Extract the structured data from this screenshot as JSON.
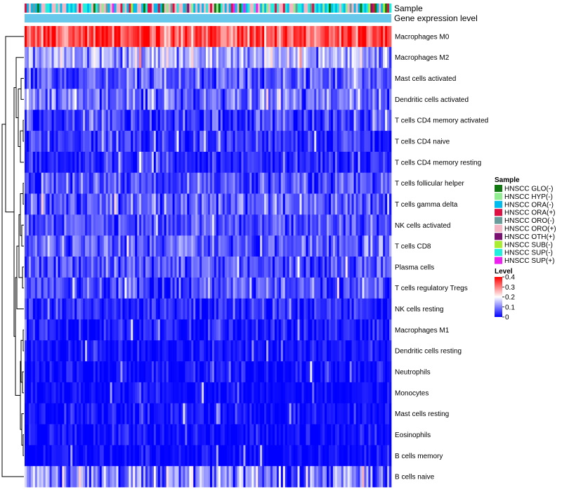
{
  "chart_data": {
    "type": "heatmap",
    "annotation_labels": {
      "sample": "Sample",
      "expression": "Gene expression level"
    },
    "rows": [
      "Macrophages M0",
      "Macrophages M2",
      "Mast cells activated",
      "Dendritic cells activated",
      "T cells CD4 memory activated",
      "T cells CD4 naive",
      "T cells CD4 memory resting",
      "T cells follicular helper",
      "T cells gamma delta",
      "NK cells activated",
      "T cells CD8",
      "Plasma cells",
      "T cells regulatory  Tregs",
      "NK cells resting",
      "Macrophages M1",
      "Dendritic cells resting",
      "Neutrophils",
      "Monocytes",
      "Mast cells resting",
      "Eosinophils",
      "B cells memory",
      "B cells naive"
    ],
    "row_means": [
      0.34,
      0.13,
      0.07,
      0.09,
      0.05,
      0.04,
      0.03,
      0.06,
      0.07,
      0.06,
      0.07,
      0.06,
      0.06,
      0.03,
      0.02,
      0.015,
      0.01,
      0.01,
      0.015,
      0.01,
      0.01,
      0.1
    ],
    "row_spread": [
      0.08,
      0.07,
      0.06,
      0.07,
      0.06,
      0.05,
      0.04,
      0.05,
      0.06,
      0.05,
      0.06,
      0.05,
      0.06,
      0.04,
      0.04,
      0.03,
      0.03,
      0.02,
      0.03,
      0.03,
      0.03,
      0.09
    ],
    "n_samples": 176,
    "value_range": [
      0,
      0.4
    ],
    "legend": {
      "sample_title": "Sample",
      "groups": [
        {
          "name": "HNSCC GLO(-)",
          "color": "#117711"
        },
        {
          "name": "HNSCC HYP(-)",
          "color": "#90ee90"
        },
        {
          "name": "HNSCC ORA(-)",
          "color": "#00bbee"
        },
        {
          "name": "HNSCC ORA(+)",
          "color": "#dd1144"
        },
        {
          "name": "HNSCC ORO(-)",
          "color": "#6a9c9c"
        },
        {
          "name": "HNSCC ORO(+)",
          "color": "#f4b6c2"
        },
        {
          "name": "HNSCC OTH(+)",
          "color": "#7a1070"
        },
        {
          "name": "HNSCC SUB(-)",
          "color": "#aaee33"
        },
        {
          "name": "HNSCC SUP(-)",
          "color": "#22eedd"
        },
        {
          "name": "HNSCC SUP(+)",
          "color": "#ee22ee"
        }
      ],
      "level_title": "Level",
      "level_ticks": [
        "0.4",
        "0.3",
        "0.2",
        "0.1",
        "0"
      ],
      "level_tick_values": [
        0.4,
        0.3,
        0.2,
        0.1,
        0
      ],
      "level_colors": [
        "#0000ff",
        "#ffffff",
        "#ff0000"
      ]
    }
  }
}
